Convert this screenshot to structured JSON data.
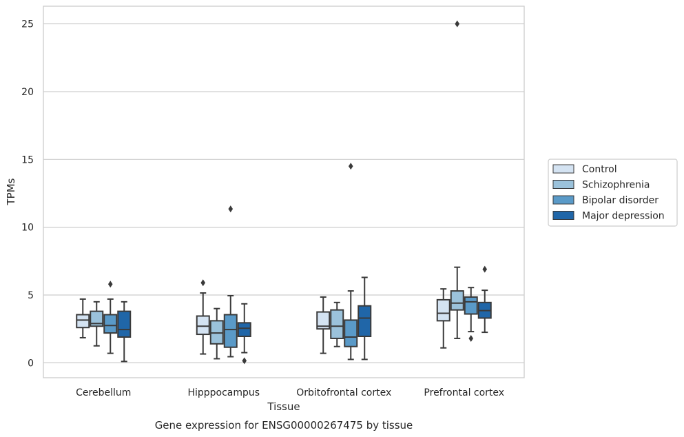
{
  "chart_data": {
    "type": "box",
    "xlabel": "Tissue",
    "ylabel": "TPMs",
    "caption": "Gene expression for ENSG00000267475 by tissue",
    "ylim": [
      -1.1,
      26.3
    ],
    "yticks": [
      0,
      5,
      10,
      15,
      20,
      25
    ],
    "grid": "horizontal",
    "legend_position": "right",
    "categories": [
      "Cerebellum",
      "Hipppocampus",
      "Orbitofrontal cortex",
      "Prefrontal cortex"
    ],
    "series": [
      {
        "name": "Control",
        "color": "#d4e3f2",
        "boxes": [
          {
            "whislo": 1.85,
            "q1": 2.6,
            "med": 3.15,
            "q3": 3.55,
            "whishi": 4.7,
            "fliers": []
          },
          {
            "whislo": 0.65,
            "q1": 2.1,
            "med": 2.7,
            "q3": 3.45,
            "whishi": 5.15,
            "fliers": [
              5.9
            ]
          },
          {
            "whislo": 0.7,
            "q1": 2.5,
            "med": 2.7,
            "q3": 3.75,
            "whishi": 4.85,
            "fliers": []
          },
          {
            "whislo": 1.1,
            "q1": 3.1,
            "med": 3.65,
            "q3": 4.65,
            "whishi": 5.45,
            "fliers": []
          }
        ]
      },
      {
        "name": "Schizophrenia",
        "color": "#9bc2db",
        "boxes": [
          {
            "whislo": 1.25,
            "q1": 2.7,
            "med": 2.9,
            "q3": 3.8,
            "whishi": 4.5,
            "fliers": []
          },
          {
            "whislo": 0.3,
            "q1": 1.4,
            "med": 2.2,
            "q3": 3.1,
            "whishi": 4.0,
            "fliers": []
          },
          {
            "whislo": 1.2,
            "q1": 1.8,
            "med": 2.7,
            "q3": 3.9,
            "whishi": 4.45,
            "fliers": []
          },
          {
            "whislo": 1.8,
            "q1": 3.9,
            "med": 4.4,
            "q3": 5.3,
            "whishi": 7.05,
            "fliers": [
              25.0
            ]
          }
        ]
      },
      {
        "name": "Bipolar disorder",
        "color": "#5a9ac8",
        "boxes": [
          {
            "whislo": 0.7,
            "q1": 2.2,
            "med": 2.75,
            "q3": 3.55,
            "whishi": 4.7,
            "fliers": [
              5.8
            ]
          },
          {
            "whislo": 0.45,
            "q1": 1.15,
            "med": 2.45,
            "q3": 3.55,
            "whishi": 4.95,
            "fliers": [
              11.35
            ]
          },
          {
            "whislo": 0.25,
            "q1": 1.2,
            "med": 1.9,
            "q3": 3.15,
            "whishi": 5.3,
            "fliers": [
              14.5
            ]
          },
          {
            "whislo": 2.3,
            "q1": 3.6,
            "med": 4.5,
            "q3": 4.85,
            "whishi": 5.55,
            "fliers": [
              1.8
            ]
          }
        ]
      },
      {
        "name": "Major depression",
        "color": "#2066a8",
        "boxes": [
          {
            "whislo": 0.1,
            "q1": 1.9,
            "med": 2.45,
            "q3": 3.8,
            "whishi": 4.5,
            "fliers": []
          },
          {
            "whislo": 0.75,
            "q1": 1.95,
            "med": 2.55,
            "q3": 2.95,
            "whishi": 4.35,
            "fliers": [
              0.15
            ]
          },
          {
            "whislo": 0.25,
            "q1": 1.95,
            "med": 3.3,
            "q3": 4.2,
            "whishi": 6.3,
            "fliers": []
          },
          {
            "whislo": 2.25,
            "q1": 3.3,
            "med": 3.85,
            "q3": 4.45,
            "whishi": 5.35,
            "fliers": [
              6.9
            ]
          }
        ]
      }
    ]
  }
}
